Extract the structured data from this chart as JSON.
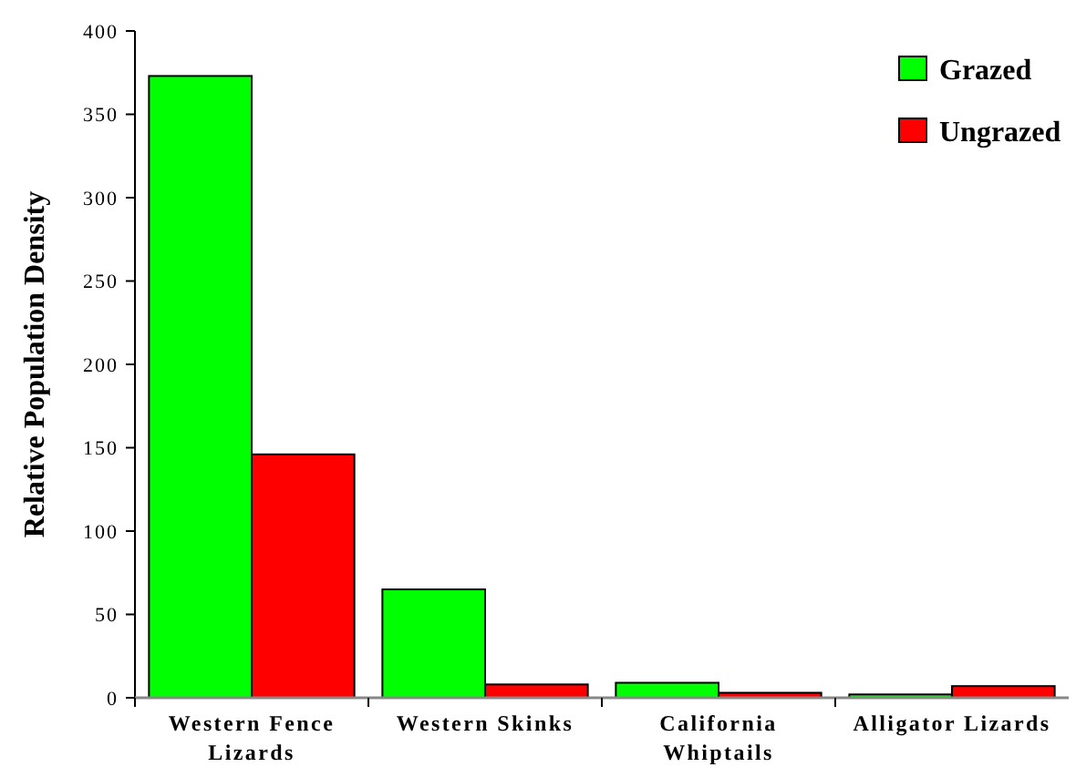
{
  "chart_data": {
    "type": "bar",
    "ylabel": "Relative Population Density",
    "categories": [
      "Western Fence Lizards",
      "Western Skinks",
      "California Whiptails",
      "Alligator Lizards"
    ],
    "series": [
      {
        "name": "Grazed",
        "color": "#00ff00",
        "values": [
          373,
          65,
          9,
          2
        ]
      },
      {
        "name": "Ungrazed",
        "color": "#ff0000",
        "values": [
          146,
          8,
          3,
          7
        ]
      }
    ],
    "ylim": [
      0,
      400
    ],
    "yticks": [
      0,
      50,
      100,
      150,
      200,
      250,
      300,
      350,
      400
    ],
    "legend": "top right",
    "grid": false
  }
}
